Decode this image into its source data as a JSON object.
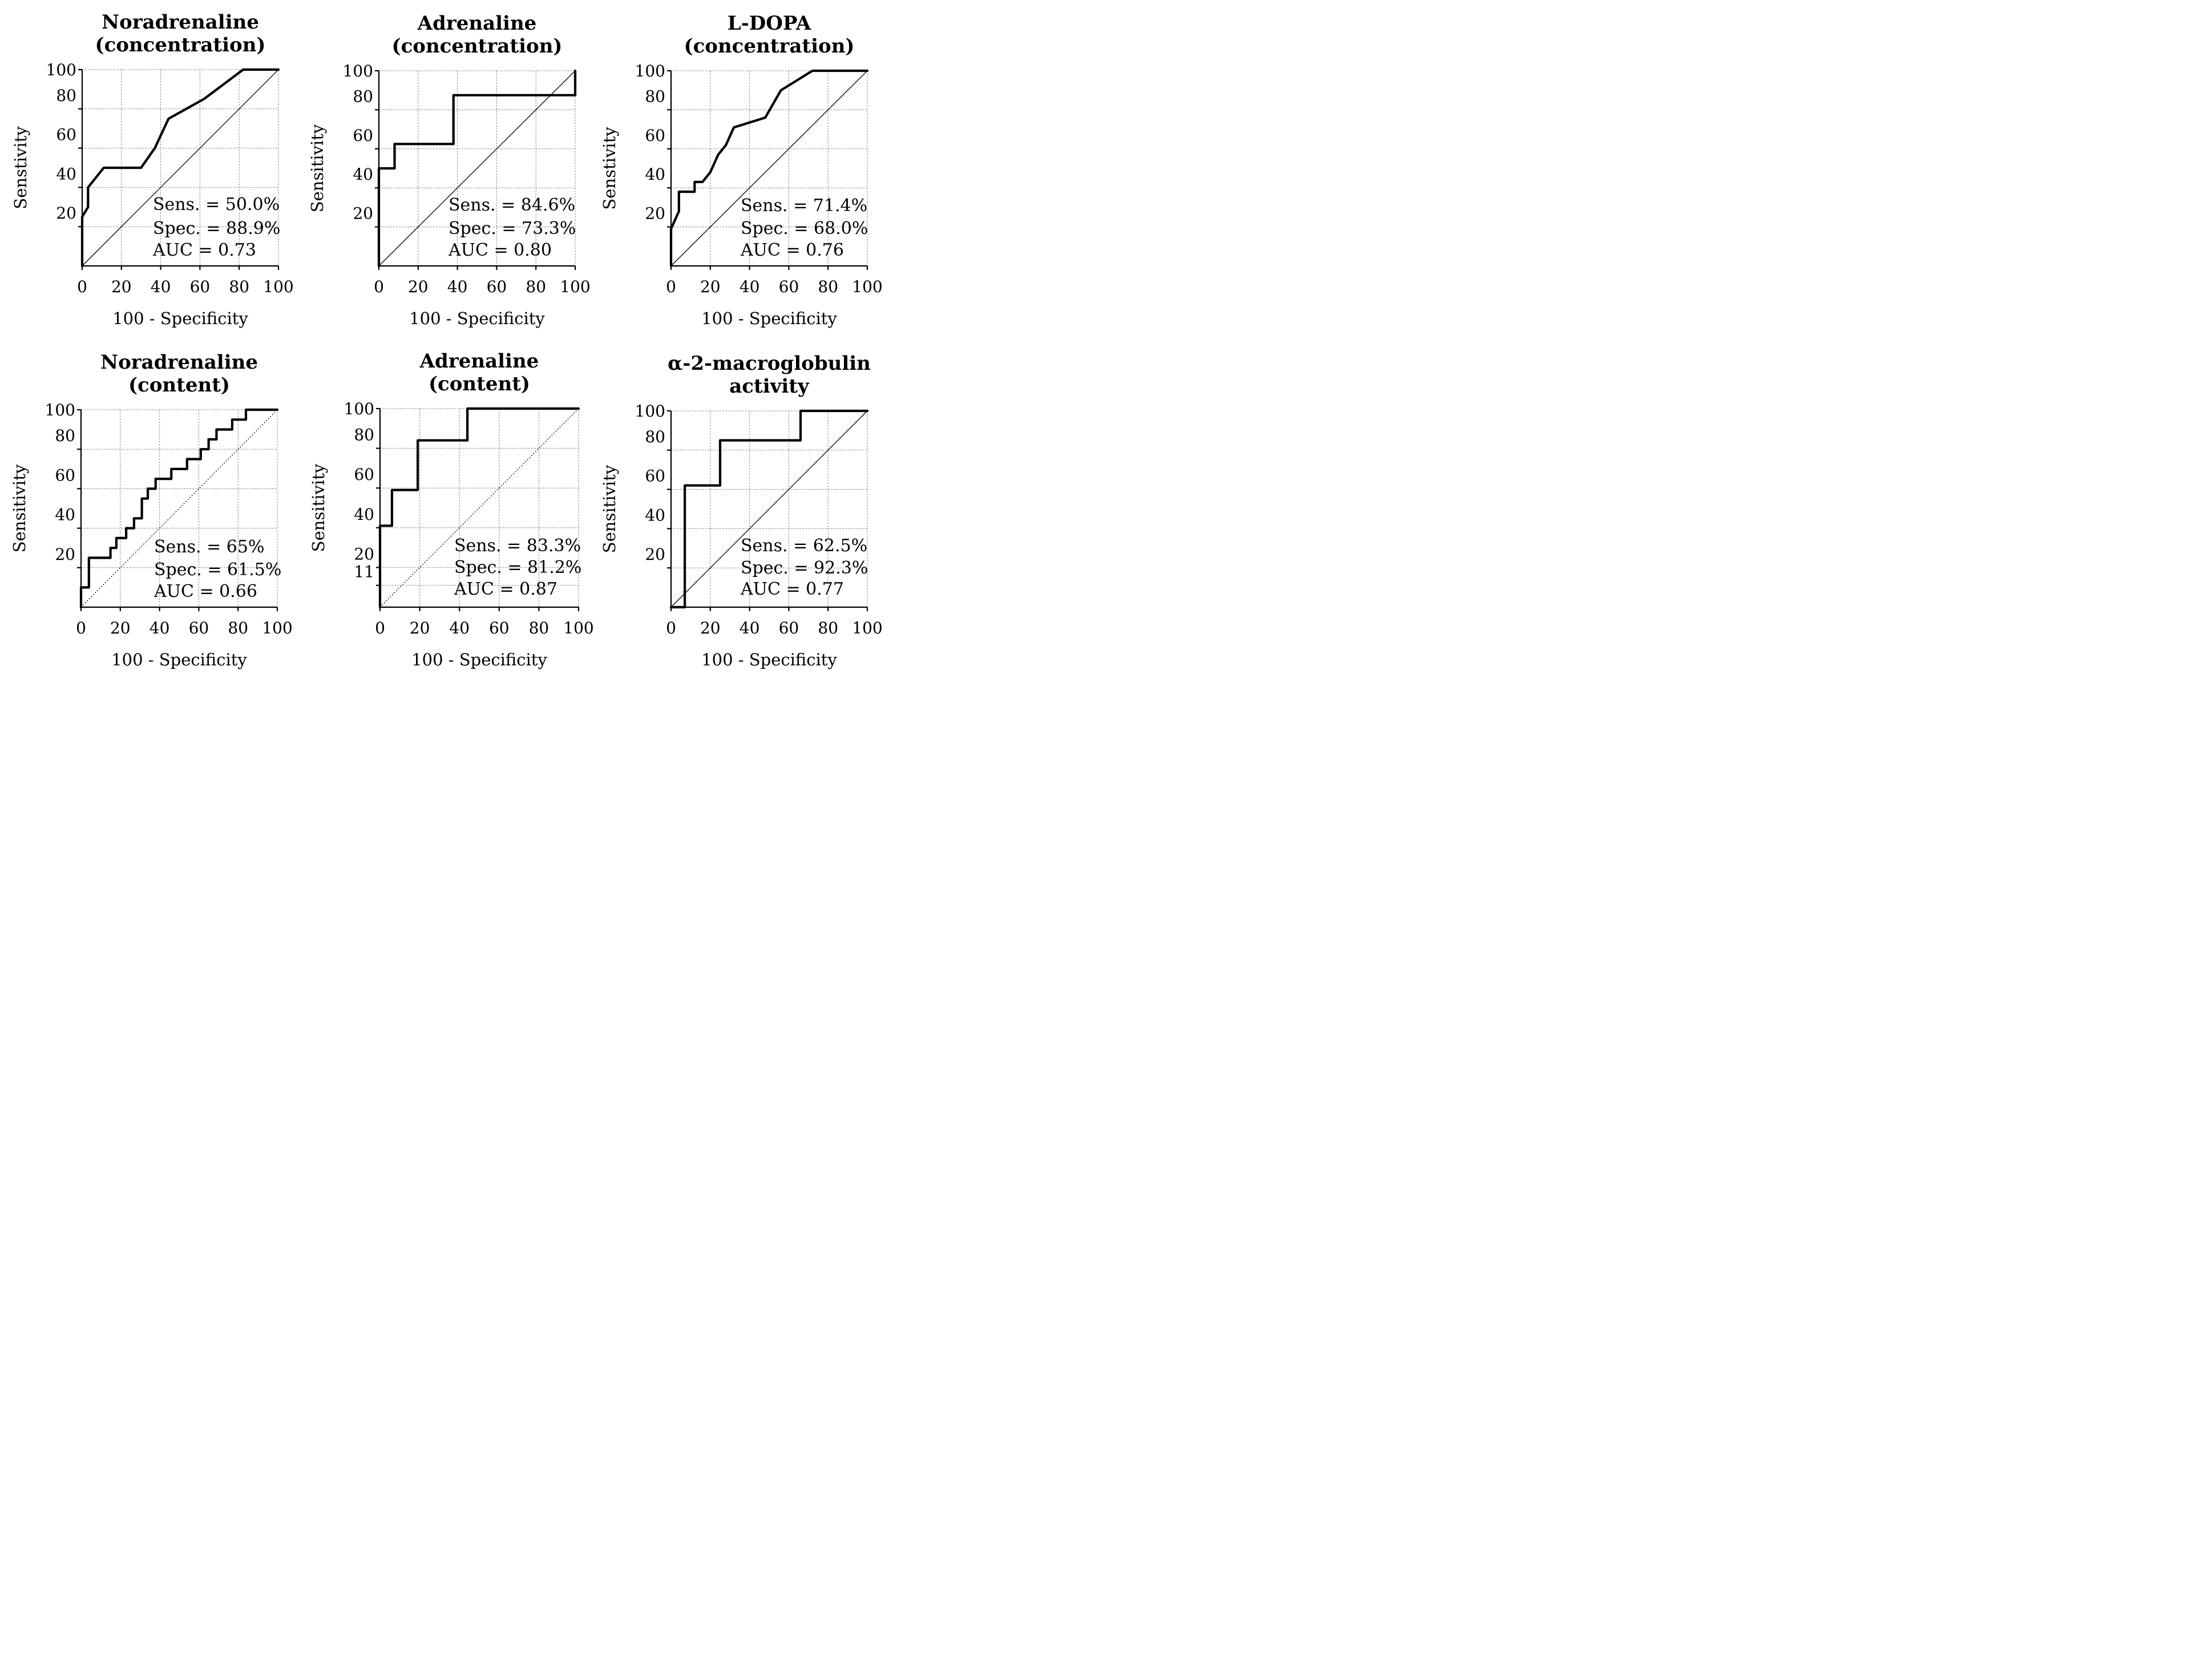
{
  "chart_data": [
    {
      "type": "line",
      "title": [
        "Noradrenaline",
        "(concentration)"
      ],
      "xlabel": "100 - Specificity",
      "ylabel": "Senstivity",
      "xlim": [
        0,
        100
      ],
      "ylim": [
        0,
        100
      ],
      "xticks": [
        "0",
        "20",
        "40",
        "60",
        "80",
        "100"
      ],
      "yticks": [
        "20",
        "40",
        "60",
        "80",
        "100"
      ],
      "grid": true,
      "diagonal_style": "solid",
      "annotations": [
        "Sens. = 50.0%",
        "Spec. = 88.9%",
        "AUC = 0.73"
      ],
      "series": [
        {
          "name": "ROC",
          "x": [
            0,
            0,
            3,
            3,
            11,
            30,
            37,
            44,
            62,
            82,
            100
          ],
          "y": [
            0,
            25,
            30,
            40,
            50,
            50,
            60,
            75,
            85,
            100,
            100
          ]
        }
      ]
    },
    {
      "type": "line",
      "title": [
        "Adrenaline",
        "(concentration)"
      ],
      "xlabel": "100 - Specificity",
      "ylabel": "Sensitivity",
      "xlim": [
        0,
        100
      ],
      "ylim": [
        0,
        100
      ],
      "xticks": [
        "0",
        "20",
        "40",
        "60",
        "80",
        "100"
      ],
      "yticks": [
        "20",
        "40",
        "60",
        "80",
        "100"
      ],
      "grid": true,
      "diagonal_style": "solid",
      "annotations": [
        "Sens. = 84.6%",
        "Spec. = 73.3%",
        "AUC = 0.80"
      ],
      "series": [
        {
          "name": "ROC",
          "x": [
            0,
            0,
            8,
            8,
            38,
            38,
            100,
            100
          ],
          "y": [
            0,
            50,
            50,
            62.5,
            62.5,
            87.5,
            87.5,
            100
          ]
        }
      ]
    },
    {
      "type": "line",
      "title": [
        "L-DOPA",
        "(concentration)"
      ],
      "xlabel": "100 - Specificity",
      "ylabel": "Senstivity",
      "xlim": [
        0,
        100
      ],
      "ylim": [
        0,
        100
      ],
      "xticks": [
        "0",
        "20",
        "40",
        "60",
        "80",
        "100"
      ],
      "yticks": [
        "20",
        "40",
        "60",
        "80",
        "100"
      ],
      "grid": true,
      "diagonal_style": "solid",
      "annotations": [
        "Sens. = 71.4%",
        "Spec. = 68.0%",
        "AUC = 0.76"
      ],
      "series": [
        {
          "name": "ROC",
          "x": [
            0,
            0,
            4,
            4,
            12,
            12,
            16,
            20,
            24,
            28,
            32,
            48,
            56,
            64,
            72,
            100
          ],
          "y": [
            0,
            19,
            28,
            38,
            38,
            43,
            43,
            48,
            57,
            62,
            71,
            76,
            90,
            95,
            100,
            100
          ]
        }
      ]
    },
    {
      "type": "line",
      "title": [
        "Noradrenaline",
        "(content)"
      ],
      "xlabel": "100 - Specificity",
      "ylabel": "Sensitivity",
      "xlim": [
        0,
        100
      ],
      "ylim": [
        0,
        100
      ],
      "xticks": [
        "0",
        "20",
        "40",
        "60",
        "80",
        "100"
      ],
      "yticks": [
        "20",
        "40",
        "60",
        "80",
        "100"
      ],
      "grid": true,
      "diagonal_style": "dotted",
      "annotations": [
        "Sens. = 65%",
        "Spec. = 61.5%",
        "AUC = 0.66"
      ],
      "series": [
        {
          "name": "ROC",
          "x": [
            0,
            0,
            4,
            4,
            15,
            15,
            18,
            18,
            23,
            23,
            27,
            27,
            31,
            31,
            34,
            34,
            38,
            38,
            46,
            46,
            54,
            54,
            61,
            61,
            65,
            65,
            69,
            69,
            77,
            77,
            84,
            84,
            100
          ],
          "y": [
            0,
            10,
            10,
            25,
            25,
            30,
            30,
            35,
            35,
            40,
            40,
            45,
            45,
            55,
            55,
            60,
            60,
            65,
            65,
            70,
            70,
            75,
            75,
            80,
            80,
            85,
            85,
            90,
            90,
            95,
            95,
            100,
            100
          ]
        }
      ]
    },
    {
      "type": "line",
      "title": [
        "Adrenaline",
        "(content)"
      ],
      "xlabel": "100 - Specificity",
      "ylabel": "Sensitivity",
      "xlim": [
        0,
        100
      ],
      "ylim": [
        0,
        100
      ],
      "xticks": [
        "0",
        "20",
        "40",
        "60",
        "80",
        "100"
      ],
      "yticks": [
        "11",
        "20",
        "40",
        "60",
        "80",
        "100"
      ],
      "grid": true,
      "diagonal_style": "dotted",
      "annotations": [
        "Sens. = 83.3%",
        "Spec. = 81.2%",
        "AUC = 0.87"
      ],
      "series": [
        {
          "name": "ROC",
          "x": [
            0,
            0,
            6,
            6,
            19,
            19,
            44,
            44,
            100
          ],
          "y": [
            0,
            41,
            41,
            59,
            59,
            84,
            84,
            100,
            100
          ]
        }
      ]
    },
    {
      "type": "line",
      "title": [
        "α-2-macroglobulin",
        "activity"
      ],
      "xlabel": "100 - Specificity",
      "ylabel": "Sensitivity",
      "xlim": [
        0,
        100
      ],
      "ylim": [
        0,
        100
      ],
      "xticks": [
        "0",
        "20",
        "40",
        "60",
        "80",
        "100"
      ],
      "yticks": [
        "20",
        "40",
        "60",
        "80",
        "100"
      ],
      "grid": true,
      "diagonal_style": "solid",
      "annotations": [
        "Sens. = 62.5%",
        "Spec. = 92.3%",
        "AUC = 0.77"
      ],
      "series": [
        {
          "name": "ROC",
          "x": [
            0,
            7,
            7,
            25,
            25,
            66,
            66,
            100
          ],
          "y": [
            0,
            0,
            62,
            62,
            85,
            85,
            100,
            100
          ]
        }
      ]
    }
  ]
}
